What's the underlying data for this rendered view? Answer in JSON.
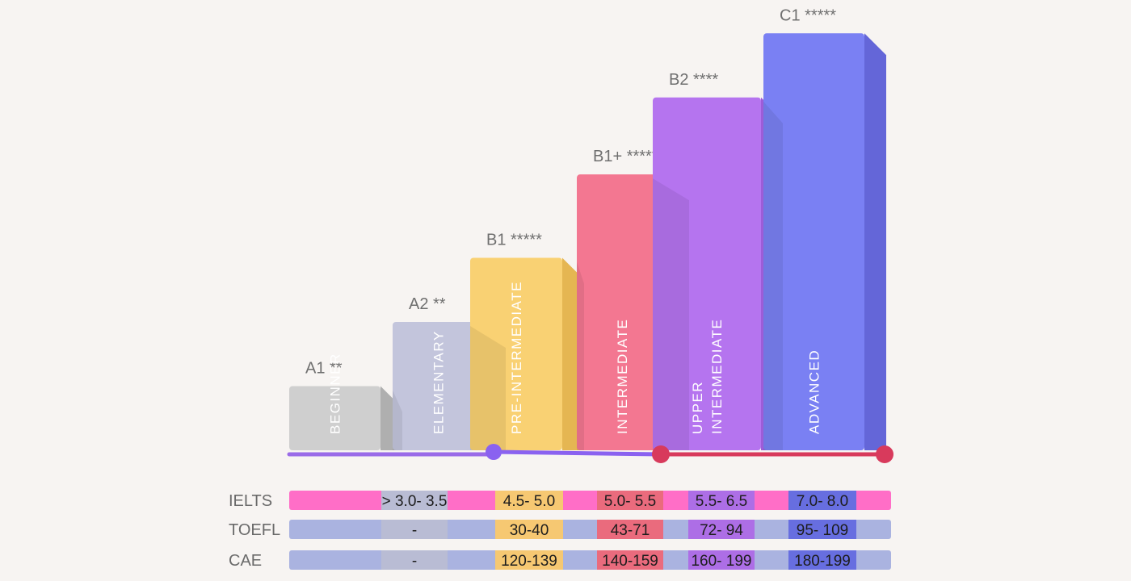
{
  "chart_data": {
    "type": "bar",
    "title": "",
    "categories": [
      "A1",
      "A2",
      "B1",
      "B1+",
      "B2",
      "C1"
    ],
    "levels": [
      {
        "code": "A1",
        "stars": "**",
        "name": "BEGINNER",
        "height": 1,
        "front": "#cfcfcf",
        "side": "#afafaf"
      },
      {
        "code": "A2",
        "stars": "**",
        "name": "ELEMENTARY",
        "height": 2,
        "front": "#c3c5dc",
        "side": "#a9abc9"
      },
      {
        "code": "B1",
        "stars": "*****",
        "name": "PRE-INTERMEDIATE",
        "height": 3,
        "front": "#f9d173",
        "side": "#e5b652"
      },
      {
        "code": "B1+",
        "stars": "*****",
        "name": "INTERMEDIATE",
        "height": 4.3,
        "front": "#f37791",
        "side": "#dc5e78"
      },
      {
        "code": "B2",
        "stars": "****",
        "name": "UPPER\nINTERMEDIATE",
        "height": 5.5,
        "front": "#b574ef",
        "side": "#9d5cd8"
      },
      {
        "code": "C1",
        "stars": "*****",
        "name": "ADVANCED",
        "height": 6.5,
        "front": "#7a80f3",
        "side": "#6466d8"
      }
    ],
    "timeline": {
      "colors": [
        "#9a6be8",
        "#8a62f0",
        "#d83a5c"
      ]
    },
    "table": {
      "rows": [
        {
          "label": "IELTS",
          "band": "#ff6ec7",
          "values": [
            "",
            "> 3.0- 3.5",
            "4.5- 5.0",
            "5.0- 5.5",
            "5.5- 6.5",
            "7.0- 8.0"
          ]
        },
        {
          "label": "TOEFL",
          "band": "#aab3e0",
          "values": [
            "",
            "-",
            "30-40",
            "43-71",
            "72- 94",
            "95- 109"
          ]
        },
        {
          "label": "CAE",
          "band": "#aab3e0",
          "values": [
            "",
            "-",
            "120-139",
            "140-159",
            "160- 199",
            "180-199"
          ]
        }
      ],
      "cell_colors": [
        "",
        "#b9bcd4",
        "#f6c872",
        "#ea6b7d",
        "#ad6ee6",
        "#676ee0"
      ]
    }
  }
}
